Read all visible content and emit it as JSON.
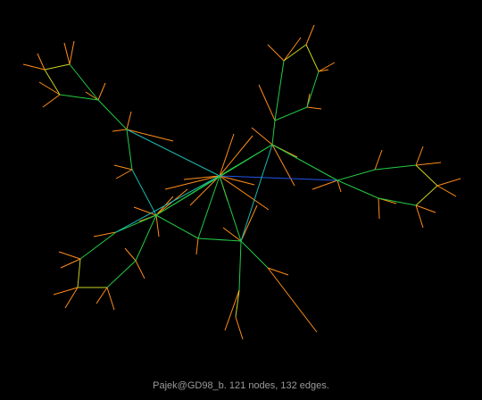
{
  "caption": "Pajek@GD98_b. 121 nodes, 132 edges.",
  "colors": {
    "background": "#000000",
    "caption": "#9a9a9a",
    "edge_leaf": "#ff8c1a",
    "edge_outer": "#c8d21e",
    "edge_mid": "#22cc44",
    "edge_inner": "#1ab8b0",
    "edge_long": "#2255ee"
  }
}
